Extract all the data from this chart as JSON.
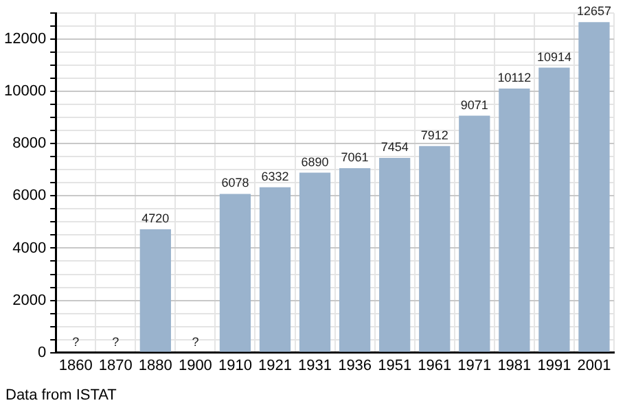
{
  "chart_data": {
    "type": "bar",
    "categories": [
      "1860",
      "1870",
      "1880",
      "1900",
      "1910",
      "1921",
      "1931",
      "1936",
      "1951",
      "1961",
      "1971",
      "1981",
      "1991",
      "2001"
    ],
    "values": [
      null,
      null,
      4720,
      null,
      6078,
      6332,
      6890,
      7061,
      7454,
      7912,
      9071,
      10112,
      10914,
      12657
    ],
    "value_labels": [
      "?",
      "?",
      "4720",
      "?",
      "6078",
      "6332",
      "6890",
      "7061",
      "7454",
      "7912",
      "9071",
      "10112",
      "10914",
      "12657"
    ],
    "color": "#9ab3cd",
    "ylim": [
      0,
      13000
    ],
    "yticks": [
      0,
      {
        "value": 500,
        "label": null
      },
      {
        "value": 1000,
        "label": null
      },
      {
        "value": 1500,
        "label": null
      },
      2000,
      {
        "value": 2500,
        "label": null
      },
      {
        "value": 3000,
        "label": null
      },
      {
        "value": 3500,
        "label": null
      },
      4000,
      {
        "value": 4500,
        "label": null
      },
      {
        "value": 5000,
        "label": null
      },
      {
        "value": 5500,
        "label": null
      },
      6000,
      {
        "value": 6500,
        "label": null
      },
      {
        "value": 7000,
        "label": null
      },
      {
        "value": 7500,
        "label": null
      },
      8000,
      {
        "value": 8500,
        "label": null
      },
      {
        "value": 9000,
        "label": null
      },
      {
        "value": 9500,
        "label": null
      },
      10000,
      {
        "value": 10500,
        "label": null
      },
      {
        "value": 11000,
        "label": null
      },
      {
        "value": 11500,
        "label": null
      },
      12000,
      {
        "value": 12500,
        "label": null
      },
      {
        "value": 13000,
        "label": null
      }
    ],
    "grid": true,
    "legend": false,
    "annotations": [
      "Data from ISTAT"
    ]
  }
}
